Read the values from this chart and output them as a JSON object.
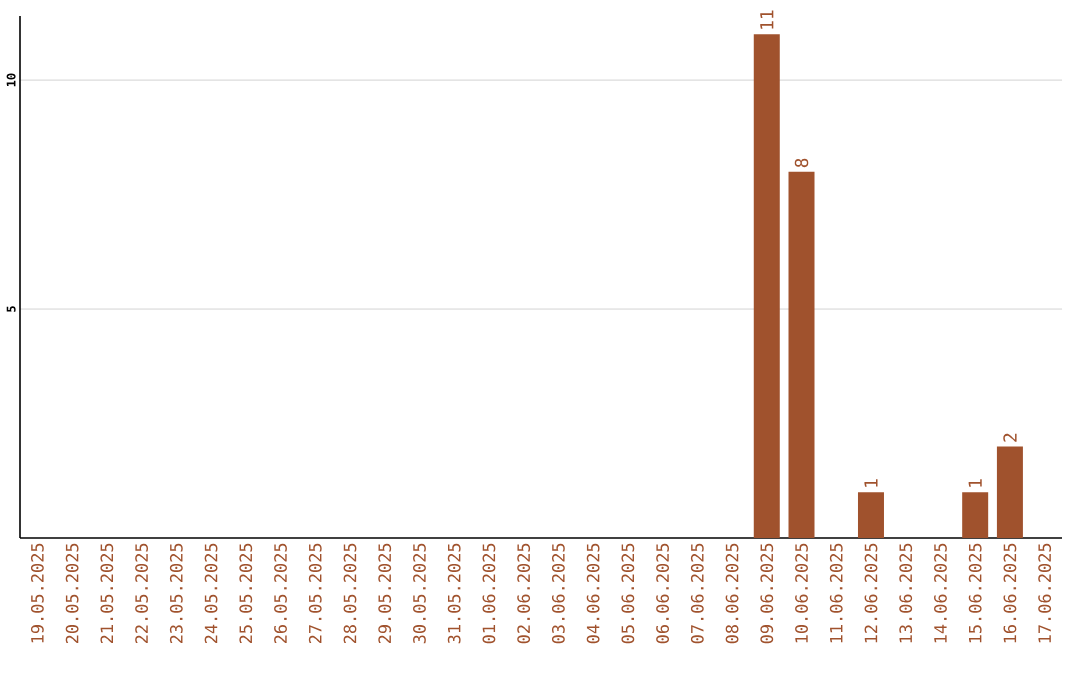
{
  "chart_data": {
    "type": "bar",
    "categories": [
      "19.05.2025",
      "20.05.2025",
      "21.05.2025",
      "22.05.2025",
      "23.05.2025",
      "24.05.2025",
      "25.05.2025",
      "26.05.2025",
      "27.05.2025",
      "28.05.2025",
      "29.05.2025",
      "30.05.2025",
      "31.05.2025",
      "01.06.2025",
      "02.06.2025",
      "03.06.2025",
      "04.06.2025",
      "05.06.2025",
      "06.06.2025",
      "07.06.2025",
      "08.06.2025",
      "09.06.2025",
      "10.06.2025",
      "11.06.2025",
      "12.06.2025",
      "13.06.2025",
      "14.06.2025",
      "15.06.2025",
      "16.06.2025",
      "17.06.2025"
    ],
    "values": [
      0,
      0,
      0,
      0,
      0,
      0,
      0,
      0,
      0,
      0,
      0,
      0,
      0,
      0,
      0,
      0,
      0,
      0,
      0,
      0,
      0,
      11,
      8,
      0,
      1,
      0,
      0,
      1,
      2,
      0
    ],
    "value_labels": [
      null,
      null,
      null,
      null,
      null,
      null,
      null,
      null,
      null,
      null,
      null,
      null,
      null,
      null,
      null,
      null,
      null,
      null,
      null,
      null,
      null,
      "11",
      "8",
      null,
      "1",
      null,
      null,
      "1",
      "2",
      null
    ],
    "color": "#a0522d",
    "ylim": [
      0,
      11.4
    ],
    "yticks": [
      5,
      10
    ],
    "grid": "y"
  }
}
